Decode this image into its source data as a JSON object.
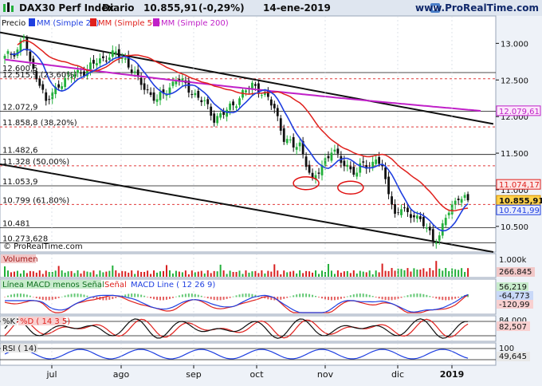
{
  "header": {
    "instrument": "DAX30 Perf Index",
    "period": "Diario",
    "last": "10.855,91",
    "change": "(-0,29%)",
    "date": "14-ene-2019",
    "brand": "www.ProRealTime.com",
    "copyright": "© ProRealTime.com"
  },
  "legend": {
    "price": "Precio",
    "ma20": "MM (Simple 20)",
    "ma50": "MM (Simple 50)",
    "ma200": "MM (Simple 200)"
  },
  "colors": {
    "ma20": "#1f3fe0",
    "ma50": "#e0201c",
    "ma200": "#c020c8",
    "up": "#22b03a",
    "down": "#101010",
    "fib": "#e03a3a"
  },
  "chart_data": {
    "type": "candlestick",
    "x_labels": [
      "jul",
      "ago",
      "sep",
      "oct",
      "nov",
      "dic",
      "2019"
    ],
    "price": {
      "ylim": [
        10150,
        13200
      ],
      "axis_ticks": [
        "13.000",
        "12.500",
        "12.000",
        "11.500",
        "11.000",
        "10.500"
      ],
      "levels": [
        {
          "label": "12.600,5",
          "value": 12600.5,
          "style": "solid"
        },
        {
          "label": "12.515,9 (23,60%)",
          "value": 12515.9,
          "style": "fib"
        },
        {
          "label": "12.072,9",
          "value": 12072.9,
          "style": "solid"
        },
        {
          "label": "11.858,8 (38,20%)",
          "value": 11858.8,
          "style": "fib"
        },
        {
          "label": "11.482,6",
          "value": 11482.6,
          "style": "solid"
        },
        {
          "label": "11.328 (50,00%)",
          "value": 11328,
          "style": "fib"
        },
        {
          "label": "11.053,9",
          "value": 11053.9,
          "style": "solid"
        },
        {
          "label": "10.799 (61,80%)",
          "value": 10799,
          "style": "fib"
        },
        {
          "label": "10.481",
          "value": 10481,
          "style": "solid"
        },
        {
          "label": "10.273,628",
          "value": 10273.628,
          "style": "solid"
        }
      ],
      "last_values": [
        {
          "label": "12.079,61",
          "value": 12079.61,
          "series": "ma200"
        },
        {
          "label": "11.074,17",
          "value": 11074.17,
          "series": "ma50"
        },
        {
          "label": "10.855,91",
          "value": 10855.91,
          "series": "price"
        },
        {
          "label": "10.741,99",
          "value": 10741.99,
          "series": "ma20"
        }
      ],
      "close_path": [
        [
          0,
          12800
        ],
        [
          4,
          12920
        ],
        [
          6,
          13100
        ],
        [
          8,
          12700
        ],
        [
          10,
          12580
        ],
        [
          13,
          12200
        ],
        [
          15,
          12300
        ],
        [
          17,
          12450
        ],
        [
          20,
          12520
        ],
        [
          23,
          12600
        ],
        [
          26,
          12640
        ],
        [
          29,
          12750
        ],
        [
          32,
          12820
        ],
        [
          35,
          12850
        ],
        [
          38,
          12780
        ],
        [
          42,
          12500
        ],
        [
          45,
          12350
        ],
        [
          48,
          12220
        ],
        [
          51,
          12350
        ],
        [
          54,
          12520
        ],
        [
          57,
          12420
        ],
        [
          60,
          12300
        ],
        [
          63,
          12180
        ],
        [
          66,
          11980
        ],
        [
          69,
          12040
        ],
        [
          72,
          12160
        ],
        [
          75,
          12320
        ],
        [
          78,
          12420
        ],
        [
          80,
          12380
        ],
        [
          82,
          12300
        ],
        [
          85,
          12100
        ],
        [
          88,
          11720
        ],
        [
          91,
          11580
        ],
        [
          93,
          11620
        ],
        [
          95,
          11380
        ],
        [
          97,
          11100
        ],
        [
          99,
          11250
        ],
        [
          101,
          11420
        ],
        [
          103,
          11540
        ],
        [
          105,
          11440
        ],
        [
          107,
          11350
        ],
        [
          109,
          11300
        ],
        [
          111,
          11200
        ],
        [
          113,
          11380
        ],
        [
          115,
          11300
        ],
        [
          117,
          11450
        ],
        [
          119,
          11250
        ],
        [
          121,
          11000
        ],
        [
          123,
          10650
        ],
        [
          125,
          10750
        ],
        [
          127,
          10650
        ],
        [
          129,
          10680
        ],
        [
          131,
          10580
        ],
        [
          133,
          10460
        ],
        [
          135,
          10320
        ],
        [
          137,
          10380
        ],
        [
          139,
          10620
        ],
        [
          141,
          10760
        ],
        [
          143,
          10930
        ],
        [
          146,
          10856
        ]
      ],
      "trendlines": [
        {
          "from": [
            0,
            13150
          ],
          "to": [
            154,
            11900
          ]
        },
        {
          "from": [
            0,
            11350
          ],
          "to": [
            154,
            10150
          ]
        }
      ],
      "ellipses": [
        {
          "center": [
            95,
            11090
          ]
        },
        {
          "center": [
            109,
            11030
          ]
        }
      ]
    },
    "panels": [
      {
        "title": "Volumen",
        "values": [
          {
            "label": "1.000k"
          },
          {
            "label": "266.845"
          }
        ]
      },
      {
        "title": "Línea MACD menos Señal",
        "values": [
          {
            "label": "56,219"
          },
          {
            "label": "-64,773"
          },
          {
            "label": "-120,99"
          }
        ],
        "legend": [
          "Señal",
          "MACD Line ( 12 26 9)"
        ]
      },
      {
        "title": "%K",
        "values": [
          {
            "label": "84,000"
          },
          {
            "label": "82,507"
          }
        ],
        "legend": [
          "%D ( 14 3 5)"
        ]
      },
      {
        "title": "RSI ( 14)",
        "values": [
          {
            "label": "100"
          },
          {
            "label": "49,645"
          }
        ]
      }
    ]
  }
}
